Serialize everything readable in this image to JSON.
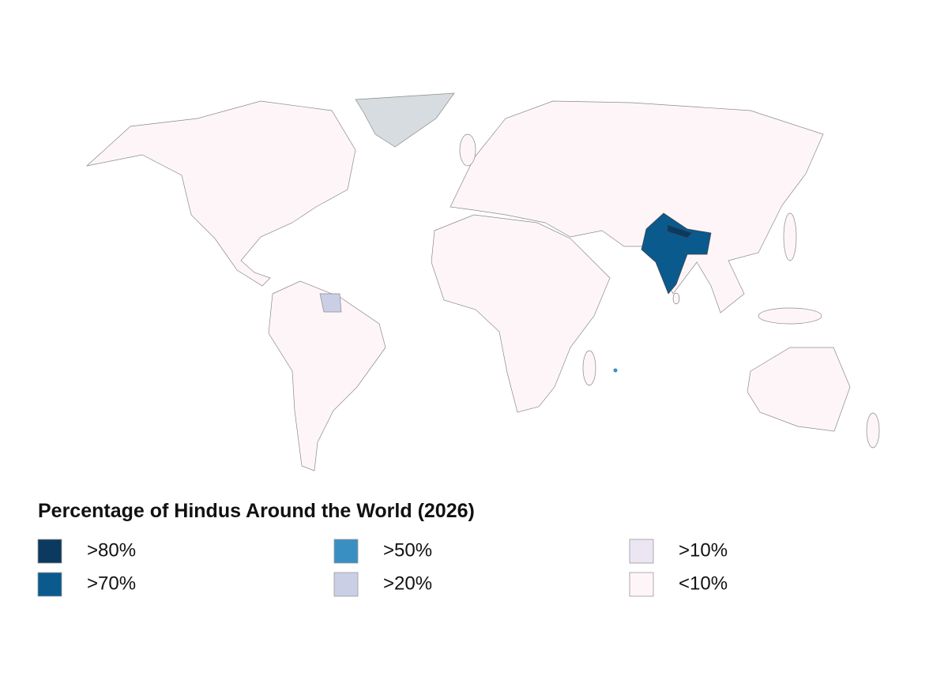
{
  "title": "Percentage of Hindus Around the World (2026)",
  "legend": [
    {
      "label": ">80%",
      "color": "#0b3a5e"
    },
    {
      "label": ">70%",
      "color": "#0a5a8e"
    },
    {
      "label": ">50%",
      "color": "#3a8fc2"
    },
    {
      "label": ">20%",
      "color": "#cacfe6"
    },
    {
      "label": ">10%",
      "color": "#ebe6f1"
    },
    {
      "label": "<10%",
      "color": "#fdf5f8"
    }
  ]
}
